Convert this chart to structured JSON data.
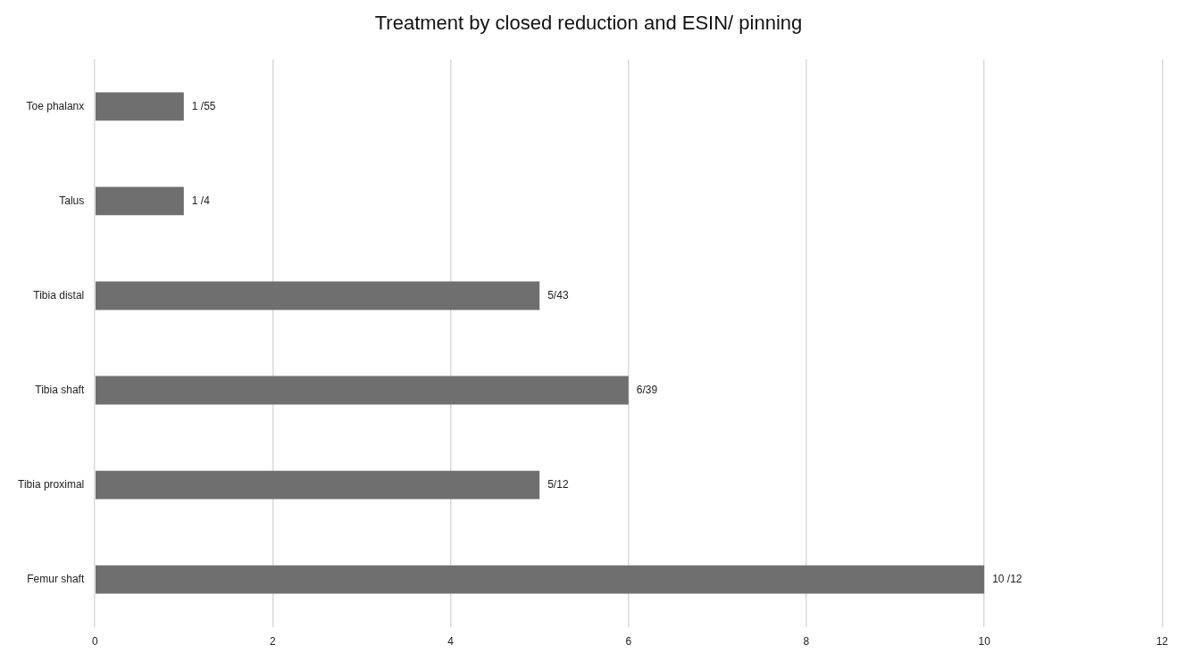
{
  "chart_data": {
    "type": "bar",
    "orientation": "horizontal",
    "title": "Treatment by closed reduction and ESIN/ pinning",
    "categories": [
      "Toe phalanx",
      "Talus",
      "Tibia distal",
      "Tibia shaft",
      "Tibia proximal",
      "Femur shaft"
    ],
    "values": [
      1,
      1,
      5,
      6,
      5,
      10
    ],
    "annotations": [
      {
        "text": "1 /55",
        "x": 1,
        "y": "Toe phalanx"
      },
      {
        "text": "1 /4",
        "x": 1,
        "y": "Talus"
      },
      {
        "text": "5/43",
        "x": 5,
        "y": "Tibia distal"
      },
      {
        "text": "6/39",
        "x": 6,
        "y": "Tibia shaft"
      },
      {
        "text": "5/12",
        "x": 5,
        "y": "Tibia proximal"
      },
      {
        "text": "10 /12",
        "x": 10,
        "y": "Femur shaft"
      }
    ],
    "color": "#6f6f6f",
    "xlim": [
      0,
      12
    ],
    "xticks": [
      0,
      2,
      4,
      6,
      8,
      10,
      12
    ],
    "grid": "x",
    "legend": false
  }
}
